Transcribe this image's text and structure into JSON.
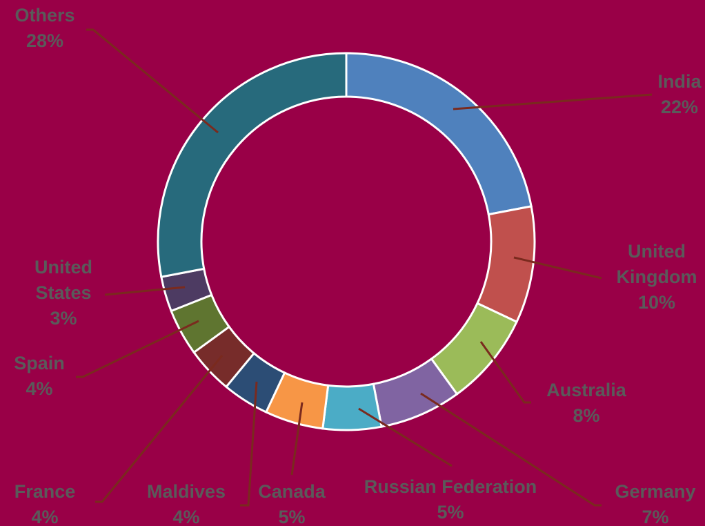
{
  "chart_data": {
    "type": "donut",
    "categories": [
      "India",
      "United Kingdom",
      "Australia",
      "Germany",
      "Russian Federation",
      "Canada",
      "Maldives",
      "France",
      "Spain",
      "United States",
      "Others"
    ],
    "values": [
      22,
      10,
      8,
      7,
      5,
      5,
      4,
      4,
      4,
      3,
      28
    ],
    "value_labels": [
      "22%",
      "10%",
      "8%",
      "7%",
      "5%",
      "5%",
      "4%",
      "4%",
      "4%",
      "3%",
      "28%"
    ],
    "colors": [
      "#4f81bd",
      "#c0504d",
      "#9bbb59",
      "#8064a2",
      "#4bacc6",
      "#f79646",
      "#2c4d75",
      "#772c2a",
      "#5f7530",
      "#4d3b62",
      "#276a7c"
    ]
  }
}
